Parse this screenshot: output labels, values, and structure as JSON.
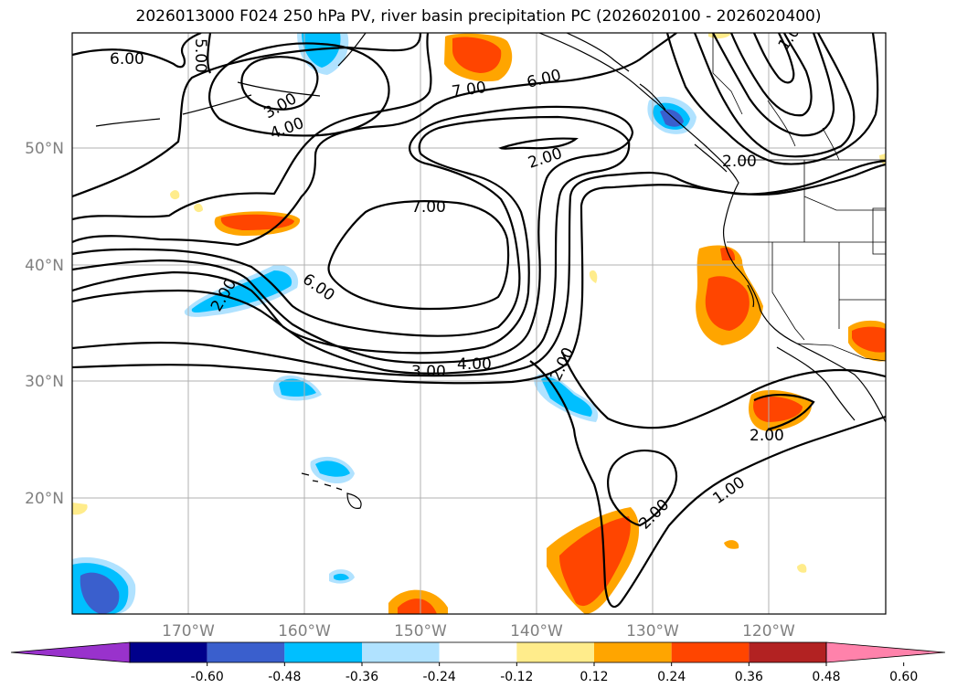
{
  "title": "2026013000 F024 250 hPa PV, river basin precipitation PC (2026020100 - 2026020400)",
  "lat_labels": [
    "50°N",
    "40°N",
    "30°N",
    "20°N"
  ],
  "lon_labels": [
    "170°W",
    "160°W",
    "150°W",
    "140°W",
    "130°W",
    "120°W"
  ],
  "contour_labels": {
    "c_6_nw": "6.00",
    "c_5_n": "5.00",
    "c_3_nw": "3.00",
    "c_4_nw": "4.00",
    "c_7_n": "7.00",
    "c_6_n": "6.00",
    "c_1_ne": "1.0",
    "c_2_trough": "2.00",
    "c_2_bc": "2.00",
    "c_7_c": "7.00",
    "c_2_w": "2.00",
    "c_6_w": "6.00",
    "c_3_s": "3.00",
    "c_4_s": "4.00",
    "c_2_s": "2.00",
    "c_2_se": "2.00",
    "c_1_se": "1.00",
    "c_2_sw": "2.00"
  },
  "colorbar": {
    "ticks": [
      "-0.60",
      "-0.48",
      "-0.36",
      "-0.24",
      "-0.12",
      "0.12",
      "0.24",
      "0.36",
      "0.48",
      "0.60"
    ],
    "colors": [
      "#9932cc",
      "#00008b",
      "#3a5fcd",
      "#00bfff",
      "#b0e2ff",
      "#ffffff",
      "#ffec8b",
      "#ffa500",
      "#ff4500",
      "#b22222",
      "#ff82ab"
    ]
  }
}
